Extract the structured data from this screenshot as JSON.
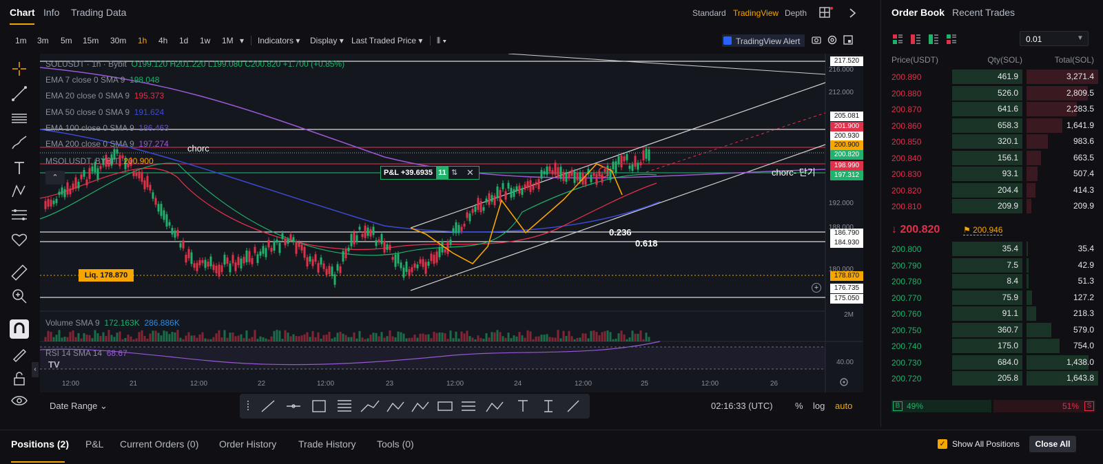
{
  "top_tabs": [
    "Chart",
    "Info",
    "Trading Data"
  ],
  "view_options": [
    "Standard",
    "TradingView",
    "Depth"
  ],
  "timeframes": [
    "1m",
    "3m",
    "5m",
    "15m",
    "30m",
    "1h",
    "4h",
    "1d",
    "1w",
    "1M"
  ],
  "active_timeframe": "1h",
  "toolbar": {
    "indicators": "Indicators",
    "display": "Display",
    "last_traded": "Last Traded Price",
    "tv_alert": "TradingView Alert"
  },
  "legend": {
    "symbol": "SOLUSDT · 1h · Bybit",
    "ohlc": "O199.120 H201.220 L199.080 C200.820 +1.700 (+0.85%)",
    "ema7": "EMA 7 close 0 SMA 9",
    "ema7_val": "198.048",
    "ema20": "EMA 20 close 0 SMA 9",
    "ema20_val": "195.373",
    "ema50": "EMA 50 close 0 SMA 9",
    "ema50_val": "191.624",
    "ema100": "EMA 100 close 0 SMA 9",
    "ema100_val": "186.463",
    "ema200": "EMA 200 close 0 SMA 9",
    "ema200_val": "197.274",
    "mark": "MSOLUSDT, BYBIT",
    "mark_val": "200.900"
  },
  "annotations": {
    "chorc1": "chorc",
    "chorc2": "chorc- 단기",
    "fib1": "0.236",
    "fib2": "0.618",
    "pnl": "P&L +39.6935",
    "pnl_qty": "11",
    "liq": "Liq. 178.870"
  },
  "price_tags": [
    {
      "label": "217.520",
      "color": "#ffffff"
    },
    {
      "label": "205.081",
      "color": "#ffffff"
    },
    {
      "label": "201.900",
      "color": "#e0314b"
    },
    {
      "label": "200.930",
      "color": "#ffffff"
    },
    {
      "label": "200.900",
      "color": "#f7a600"
    },
    {
      "label": "200.820",
      "color": "#20b26c"
    },
    {
      "label": "198.990",
      "color": "#e0314b"
    },
    {
      "label": "197.312",
      "color": "#20b26c"
    },
    {
      "label": "186.790",
      "color": "#ffffff"
    },
    {
      "label": "184.930",
      "color": "#ffffff"
    },
    {
      "label": "178.870",
      "color": "#f7a600"
    },
    {
      "label": "176.735",
      "color": "#ffffff"
    },
    {
      "label": "175.050",
      "color": "#ffffff"
    }
  ],
  "axis_labels": [
    "216.000",
    "212.000",
    "192.000",
    "188.000",
    "180.000",
    "2M",
    "40.00"
  ],
  "time_labels": [
    "12:00",
    "21",
    "12:00",
    "22",
    "12:00",
    "23",
    "12:00",
    "24",
    "12:00",
    "25",
    "12:00",
    "26"
  ],
  "volume": {
    "label": "Volume SMA 9",
    "v1": "172.163K",
    "v2": "286.886K"
  },
  "rsi": {
    "label": "RSI 14 SMA 14",
    "val": "68.67"
  },
  "chart_bottom": {
    "date_range": "Date Range",
    "clock": "02:16:33 (UTC)",
    "pct": "%",
    "log": "log",
    "auto": "auto"
  },
  "order_book": {
    "title": "Order Book",
    "recent": "Recent Trades",
    "tick": "0.01",
    "col_price": "Price(USDT)",
    "col_qty": "Qty(SOL)",
    "col_total": "Total(SOL)",
    "asks": [
      {
        "price": "200.890",
        "qty": "461.9",
        "total": "3,271.4",
        "tfrac": 1.0
      },
      {
        "price": "200.880",
        "qty": "526.0",
        "total": "2,809.5",
        "tfrac": 0.86
      },
      {
        "price": "200.870",
        "qty": "641.6",
        "total": "2,283.5",
        "tfrac": 0.7
      },
      {
        "price": "200.860",
        "qty": "658.3",
        "total": "1,641.9",
        "tfrac": 0.5
      },
      {
        "price": "200.850",
        "qty": "320.1",
        "total": "983.6",
        "tfrac": 0.3
      },
      {
        "price": "200.840",
        "qty": "156.1",
        "total": "663.5",
        "tfrac": 0.2
      },
      {
        "price": "200.830",
        "qty": "93.1",
        "total": "507.4",
        "tfrac": 0.155
      },
      {
        "price": "200.820",
        "qty": "204.4",
        "total": "414.3",
        "tfrac": 0.127
      },
      {
        "price": "200.810",
        "qty": "209.9",
        "total": "209.9",
        "tfrac": 0.064
      }
    ],
    "last_price": "200.820",
    "mark_price": "200.946",
    "bids": [
      {
        "price": "200.800",
        "qty": "35.4",
        "total": "35.4",
        "tfrac": 0.02
      },
      {
        "price": "200.790",
        "qty": "7.5",
        "total": "42.9",
        "tfrac": 0.026
      },
      {
        "price": "200.780",
        "qty": "8.4",
        "total": "51.3",
        "tfrac": 0.031
      },
      {
        "price": "200.770",
        "qty": "75.9",
        "total": "127.2",
        "tfrac": 0.077
      },
      {
        "price": "200.760",
        "qty": "91.1",
        "total": "218.3",
        "tfrac": 0.13
      },
      {
        "price": "200.750",
        "qty": "360.7",
        "total": "579.0",
        "tfrac": 0.35
      },
      {
        "price": "200.740",
        "qty": "175.0",
        "total": "754.0",
        "tfrac": 0.46
      },
      {
        "price": "200.730",
        "qty": "684.0",
        "total": "1,438.0",
        "tfrac": 0.87
      },
      {
        "price": "200.720",
        "qty": "205.8",
        "total": "1,643.8",
        "tfrac": 1.0
      }
    ],
    "buy_pct": "49%",
    "sell_pct": "51%",
    "b": "B",
    "s": "S",
    "buy_ratio": 0.49
  },
  "bottom_tabs": [
    "Positions (2)",
    "P&L",
    "Current Orders (0)",
    "Order History",
    "Trade History",
    "Tools (0)"
  ],
  "bottom_right": {
    "show_all": "Show All Positions",
    "close_all": "Close All"
  },
  "colors": {
    "accent": "#f7a600",
    "up": "#20b26c",
    "down": "#e0314b"
  }
}
